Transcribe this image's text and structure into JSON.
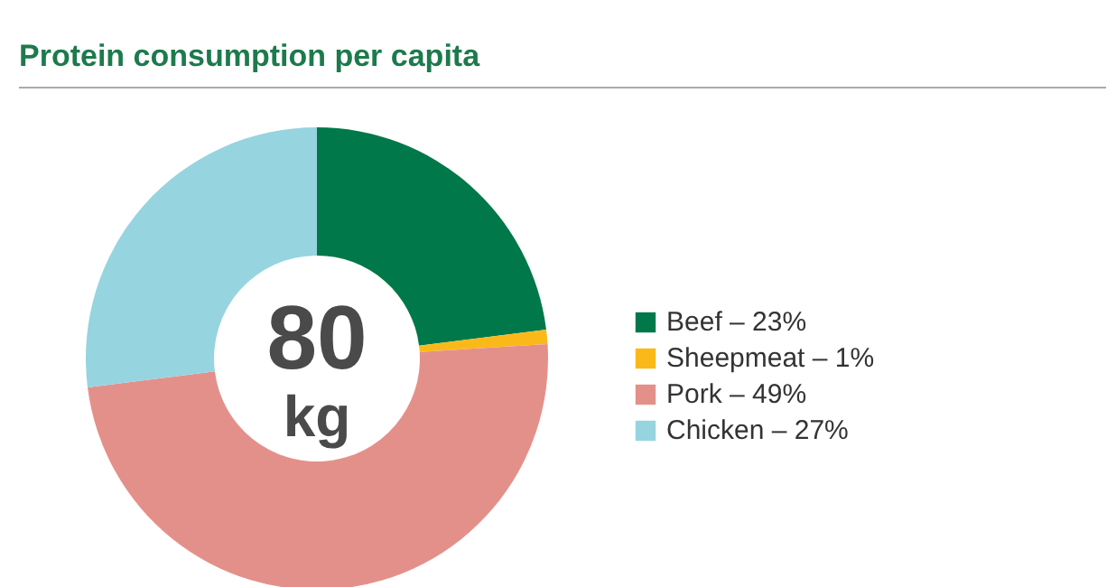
{
  "chart_data": {
    "type": "donut",
    "title": "Protein consumption per capita",
    "categories": [
      "Beef",
      "Sheepmeat",
      "Pork",
      "Chicken"
    ],
    "values": [
      23,
      1,
      49,
      27
    ],
    "value_labels": [
      "23%",
      "1%",
      "49%",
      "27%"
    ],
    "colors": [
      "#00784a",
      "#fbb919",
      "#e4908a",
      "#96d4e0"
    ],
    "annotations": [
      "80",
      "kg"
    ],
    "legend": "right"
  }
}
